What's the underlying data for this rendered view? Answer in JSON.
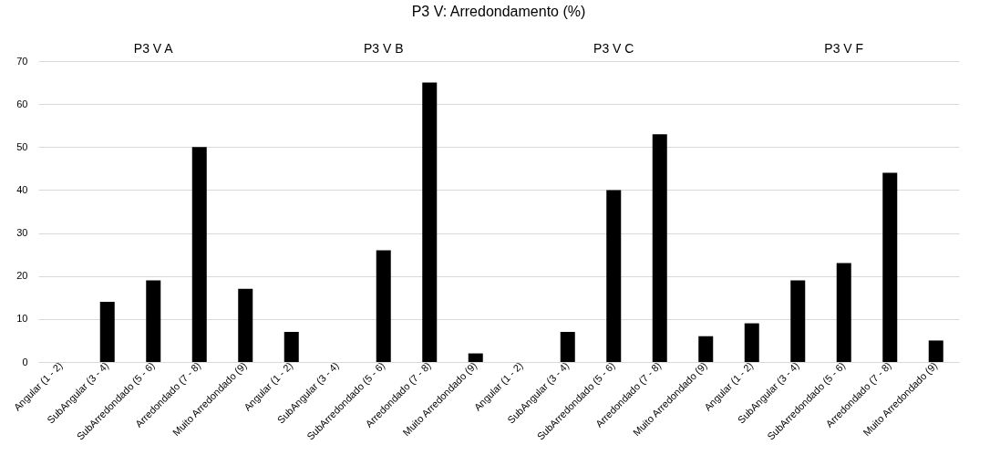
{
  "chart_data": {
    "type": "bar",
    "title": "P3 V: Arredondamento (%)",
    "categories": [
      "Angular  (1 - 2)",
      "SubAngular  (3 - 4)",
      "SubArredondado (5 - 6)",
      "Arredondado  (7 - 8)",
      "Muito Arredondado (9)",
      "Angular  (1 - 2)",
      "SubAngular  (3 - 4)",
      "SubArredondado (5 - 6)",
      "Arredondado  (7 - 8)",
      "Muito Arredondado (9)",
      "Angular  (1 - 2)",
      "SubAngular  (3 - 4)",
      "SubArredondado (5 - 6)",
      "Arredondado  (7 - 8)",
      "Muito Arredondado (9)",
      "Angular  (1 - 2)",
      "SubAngular  (3 - 4)",
      "SubArredondado (5 - 6)",
      "Arredondado  (7 - 8)",
      "Muito Arredondado (9)"
    ],
    "values": [
      0,
      14,
      19,
      50,
      17,
      7,
      0,
      26,
      65,
      2,
      0,
      7,
      40,
      53,
      6,
      9,
      19,
      23,
      44,
      5
    ],
    "color": "#000000",
    "annotations": [
      "P3 V A",
      "P3 V B",
      "P3 V C",
      "P3 V F"
    ],
    "ylim": [
      0,
      70
    ],
    "yticks": [
      0,
      10,
      20,
      30,
      40,
      50,
      60,
      70
    ],
    "grid": "y"
  }
}
